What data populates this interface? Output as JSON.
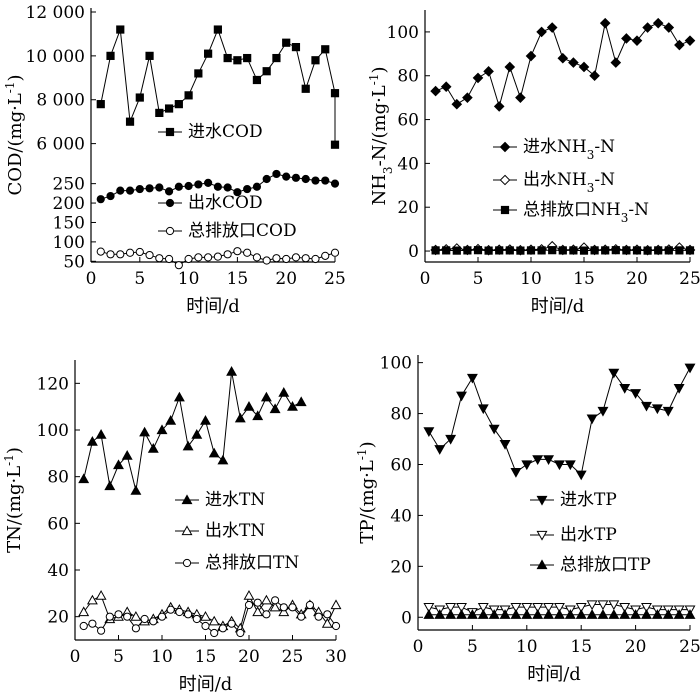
{
  "chart_data": [
    {
      "type": "line",
      "ylabel": "COD/(mg·L⁻¹)",
      "xlabel": "时间/d",
      "xlim": [
        0,
        25
      ],
      "xticks": [
        "0",
        "5",
        "10",
        "15",
        "20",
        "25"
      ],
      "y_axis": "broken",
      "yticks_upper": [
        "6 000",
        "8 000",
        "10 000",
        "12 000"
      ],
      "yticks_lower": [
        "50",
        "100",
        "150",
        "200",
        "250"
      ],
      "ylim_upper": [
        5800,
        12000
      ],
      "ylim_lower": [
        25,
        280
      ],
      "series": [
        {
          "name": "进水COD",
          "marker": "square-filled",
          "axis": "upper",
          "x": [
            1,
            2,
            3,
            4,
            5,
            6,
            7,
            8,
            9,
            10,
            11,
            12,
            13,
            14,
            15,
            16,
            17,
            18,
            19,
            20,
            21,
            22,
            23,
            24,
            25
          ],
          "values": [
            7800,
            10000,
            11200,
            7000,
            8100,
            10000,
            7400,
            7600,
            7800,
            8200,
            9200,
            10100,
            11200,
            9900,
            9800,
            9900,
            8900,
            9300,
            9900,
            10600,
            10400,
            8500,
            9800,
            10300,
            8300
          ]
        },
        {
          "name": "进水COD",
          "marker": "square-filled",
          "axis": "upper",
          "legend": false,
          "x": [
            25
          ],
          "values": [
            5950
          ]
        },
        {
          "name": "出水COD",
          "marker": "circle-filled",
          "axis": "lower",
          "x": [
            1,
            2,
            3,
            4,
            5,
            6,
            7,
            8,
            9,
            10,
            11,
            12,
            13,
            14,
            15,
            16,
            17,
            18,
            19,
            20,
            21,
            22,
            23,
            24,
            25
          ],
          "values": [
            210,
            218,
            232,
            232,
            236,
            238,
            240,
            230,
            242,
            244,
            248,
            252,
            242,
            240,
            228,
            236,
            242,
            262,
            275,
            268,
            265,
            262,
            258,
            258,
            250
          ]
        },
        {
          "name": "总排放口COD",
          "marker": "circle-open",
          "axis": "lower",
          "x": [
            1,
            2,
            3,
            4,
            5,
            6,
            7,
            8,
            9,
            10,
            11,
            12,
            13,
            14,
            15,
            16,
            17,
            18,
            19,
            20,
            21,
            22,
            23,
            24,
            25
          ],
          "values": [
            75,
            68,
            68,
            72,
            74,
            66,
            58,
            56,
            40,
            56,
            60,
            60,
            62,
            68,
            76,
            72,
            60,
            52,
            58,
            56,
            60,
            58,
            56,
            64,
            72
          ]
        }
      ]
    },
    {
      "type": "line",
      "ylabel": "NH₃-N/(mg·L⁻¹)",
      "xlabel": "时间/d",
      "xlim": [
        0,
        25
      ],
      "ylim": [
        -5,
        110
      ],
      "xticks": [
        "0",
        "5",
        "10",
        "15",
        "20",
        "25"
      ],
      "yticks": [
        "0",
        "20",
        "40",
        "60",
        "80",
        "100"
      ],
      "series": [
        {
          "name": "进水NH₃-N",
          "marker": "diamond-filled",
          "x": [
            1,
            2,
            3,
            4,
            5,
            6,
            7,
            8,
            9,
            10,
            11,
            12,
            13,
            14,
            15,
            16,
            17,
            18,
            19,
            20,
            21,
            22,
            23,
            24,
            25
          ],
          "values": [
            73,
            75,
            67,
            70,
            79,
            82,
            66,
            84,
            70,
            89,
            100,
            102,
            88,
            86,
            84,
            80,
            104,
            86,
            97,
            96,
            102,
            104,
            102,
            94,
            96
          ]
        },
        {
          "name": "出水NH₃-N",
          "marker": "diamond-open",
          "x": [
            1,
            2,
            3,
            4,
            5,
            6,
            7,
            8,
            9,
            10,
            11,
            12,
            13,
            14,
            15,
            16,
            17,
            18,
            19,
            20,
            21,
            22,
            23,
            24,
            25
          ],
          "values": [
            0.5,
            0.8,
            1.2,
            0.5,
            0.9,
            0.4,
            0.6,
            0.7,
            0.4,
            0.6,
            0.8,
            2.2,
            0.5,
            0.6,
            1.6,
            0.5,
            0.6,
            0.8,
            0.5,
            0.6,
            0.4,
            0.5,
            0.7,
            1.6,
            0.5
          ]
        },
        {
          "name": "总排放口NH₃-N",
          "marker": "square-filled",
          "x": [
            1,
            2,
            3,
            4,
            5,
            6,
            7,
            8,
            9,
            10,
            11,
            12,
            13,
            14,
            15,
            16,
            17,
            18,
            19,
            20,
            21,
            22,
            23,
            24,
            25
          ],
          "values": [
            0.3,
            0.3,
            0.2,
            0.3,
            0.4,
            0.2,
            0.3,
            0.3,
            0.2,
            0.3,
            0.3,
            0.4,
            0.3,
            0.3,
            0.2,
            0.3,
            0.3,
            0.4,
            0.3,
            0.3,
            0.2,
            0.3,
            0.3,
            0.3,
            0.3
          ]
        }
      ]
    },
    {
      "type": "line",
      "ylabel": "TN/(mg·L⁻¹)",
      "xlabel": "时间/d",
      "xlim": [
        0,
        30
      ],
      "ylim": [
        10,
        130
      ],
      "xticks": [
        "0",
        "5",
        "10",
        "15",
        "20",
        "25",
        "30"
      ],
      "yticks": [
        "20",
        "40",
        "60",
        "80",
        "100",
        "120"
      ],
      "series": [
        {
          "name": "进水TN",
          "marker": "triangle-up-filled",
          "x": [
            1,
            2,
            3,
            4,
            5,
            6,
            7,
            8,
            9,
            10,
            11,
            12,
            13,
            14,
            15,
            16,
            17,
            18,
            19,
            20,
            21,
            22,
            23,
            24,
            25,
            26
          ],
          "values": [
            79,
            95,
            98,
            76,
            85,
            89,
            74,
            99,
            92,
            100,
            104,
            114,
            93,
            98,
            104,
            90,
            87,
            125,
            105,
            110,
            106,
            114,
            109,
            116,
            110,
            112
          ]
        },
        {
          "name": "出水TN",
          "marker": "triangle-up-open",
          "x": [
            1,
            2,
            3,
            4,
            5,
            6,
            7,
            8,
            9,
            10,
            11,
            12,
            13,
            14,
            15,
            16,
            17,
            18,
            19,
            20,
            21,
            22,
            23,
            24,
            25,
            26,
            27,
            28,
            29,
            30
          ],
          "values": [
            22,
            27,
            29,
            19,
            20,
            22,
            20,
            18,
            19,
            21,
            24,
            23,
            22,
            21,
            20,
            18,
            16,
            18,
            15,
            29,
            22,
            27,
            24,
            22,
            25,
            21,
            25,
            22,
            17,
            25
          ]
        },
        {
          "name": "总排放口TN",
          "marker": "circle-open",
          "x": [
            1,
            2,
            3,
            4,
            5,
            6,
            7,
            8,
            9,
            10,
            11,
            12,
            13,
            14,
            15,
            16,
            17,
            18,
            19,
            20,
            21,
            22,
            23,
            24,
            25,
            26,
            27,
            28,
            29,
            30
          ],
          "values": [
            16,
            17,
            14,
            20,
            21,
            20,
            15,
            19,
            18,
            20,
            23,
            22,
            21,
            19,
            16,
            13,
            15,
            17,
            13,
            25,
            26,
            21,
            27,
            24,
            24,
            20,
            25,
            20,
            21,
            16
          ]
        }
      ]
    },
    {
      "type": "line",
      "ylabel": "TP/(mg·L⁻¹)",
      "xlabel": "时间/d",
      "xlim": [
        0,
        25
      ],
      "ylim": [
        -5,
        103
      ],
      "xticks": [
        "0",
        "5",
        "10",
        "15",
        "20",
        "25"
      ],
      "yticks": [
        "0",
        "20",
        "40",
        "60",
        "80",
        "100"
      ],
      "series": [
        {
          "name": "进水TP",
          "marker": "triangle-down-filled",
          "x": [
            1,
            2,
            3,
            4,
            5,
            6,
            7,
            8,
            9,
            10,
            11,
            12,
            13,
            14,
            15,
            16,
            17,
            18,
            19,
            20,
            21,
            22,
            23,
            24,
            25
          ],
          "values": [
            73,
            66,
            70,
            87,
            94,
            82,
            74,
            68,
            57,
            60,
            62,
            62,
            60,
            60,
            56,
            78,
            81,
            96,
            90,
            88,
            83,
            82,
            81,
            90,
            98
          ]
        },
        {
          "name": "出水TP",
          "marker": "triangle-down-open",
          "x": [
            1,
            2,
            3,
            4,
            5,
            6,
            7,
            8,
            9,
            10,
            11,
            12,
            13,
            14,
            15,
            16,
            17,
            18,
            19,
            20,
            21,
            22,
            23,
            24,
            25
          ],
          "values": [
            4,
            3,
            4,
            4,
            2,
            4,
            3,
            3,
            4,
            4,
            4,
            4,
            4,
            3,
            4,
            5,
            5,
            5,
            4,
            3,
            4,
            3,
            3,
            3,
            3
          ]
        },
        {
          "name": "总排放口TP",
          "marker": "triangle-up-filled",
          "x": [
            1,
            2,
            3,
            4,
            5,
            6,
            7,
            8,
            9,
            10,
            11,
            12,
            13,
            14,
            15,
            16,
            17,
            18,
            19,
            20,
            21,
            22,
            23,
            24,
            25
          ],
          "values": [
            1,
            1,
            1,
            1,
            1,
            1,
            1,
            1,
            1,
            1,
            1,
            1,
            1,
            1,
            1,
            1,
            1,
            1,
            1,
            1,
            1,
            1,
            1,
            1,
            1
          ]
        }
      ]
    }
  ]
}
